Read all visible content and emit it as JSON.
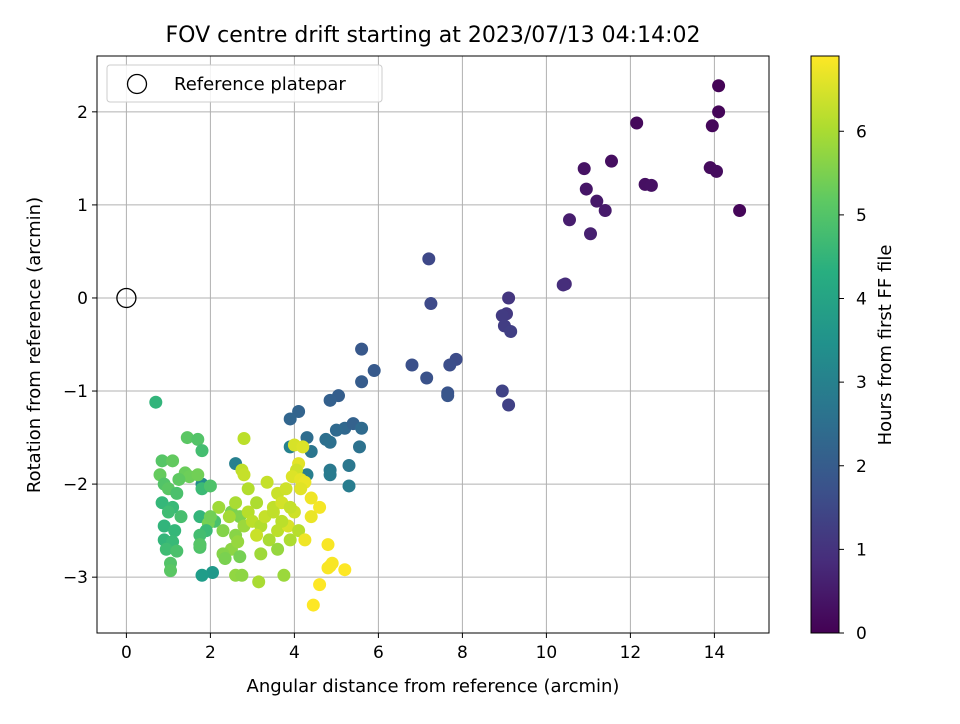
{
  "chart_data": {
    "type": "scatter",
    "title": "FOV centre drift starting at 2023/07/13 04:14:02",
    "xlabel": "Angular distance from reference (arcmin)",
    "ylabel": "Rotation from reference (arcmin)",
    "xlim": [
      -0.7,
      15.3
    ],
    "ylim": [
      -3.6,
      2.6
    ],
    "xticks": [
      0,
      2,
      4,
      6,
      8,
      10,
      12,
      14
    ],
    "yticks": [
      -3,
      -2,
      -1,
      0,
      1,
      2
    ],
    "xtick_labels": [
      "0",
      "2",
      "4",
      "6",
      "8",
      "10",
      "12",
      "14"
    ],
    "ytick_labels": [
      "−3",
      "−2",
      "−1",
      "0",
      "1",
      "2"
    ],
    "grid": true,
    "legend": {
      "placement": "top-left",
      "entries": [
        "Reference platepar"
      ]
    },
    "reference_point": {
      "x": 0,
      "y": 0,
      "label": "Reference platepar"
    },
    "colorbar": {
      "label": "Hours from first FF file",
      "range": [
        0,
        6.9
      ],
      "ticks": [
        0,
        1,
        2,
        3,
        4,
        5,
        6
      ],
      "tick_labels": [
        "0",
        "1",
        "2",
        "3",
        "4",
        "5",
        "6"
      ],
      "colormap": "viridis"
    },
    "points": [
      [
        14.1,
        2.28,
        0.05
      ],
      [
        14.1,
        2.0,
        0.08
      ],
      [
        12.15,
        1.88,
        0.15
      ],
      [
        13.95,
        1.85,
        0.12
      ],
      [
        11.55,
        1.47,
        0.25
      ],
      [
        13.9,
        1.4,
        0.2
      ],
      [
        14.05,
        1.36,
        0.22
      ],
      [
        10.9,
        1.39,
        0.35
      ],
      [
        12.35,
        1.22,
        0.3
      ],
      [
        12.5,
        1.21,
        0.32
      ],
      [
        10.95,
        1.17,
        0.4
      ],
      [
        11.2,
        1.04,
        0.45
      ],
      [
        11.4,
        0.94,
        0.5
      ],
      [
        14.6,
        0.94,
        0.1
      ],
      [
        10.55,
        0.84,
        0.55
      ],
      [
        11.05,
        0.69,
        0.6
      ],
      [
        10.45,
        0.15,
        0.85
      ],
      [
        10.4,
        0.14,
        0.9
      ],
      [
        9.1,
        0.0,
        1.1
      ],
      [
        9.05,
        -0.17,
        1.15
      ],
      [
        8.95,
        -0.19,
        1.2
      ],
      [
        9.0,
        -0.3,
        1.25
      ],
      [
        9.15,
        -0.36,
        1.3
      ],
      [
        8.95,
        -1.0,
        1.4
      ],
      [
        9.1,
        -1.15,
        1.35
      ],
      [
        7.2,
        0.42,
        1.5
      ],
      [
        7.25,
        -0.06,
        1.55
      ],
      [
        7.85,
        -0.66,
        1.6
      ],
      [
        7.7,
        -0.72,
        1.65
      ],
      [
        6.8,
        -0.72,
        1.7
      ],
      [
        7.15,
        -0.86,
        1.75
      ],
      [
        7.65,
        -1.02,
        1.8
      ],
      [
        7.65,
        -1.05,
        1.85
      ],
      [
        5.6,
        -0.55,
        1.9
      ],
      [
        5.9,
        -0.78,
        1.95
      ],
      [
        5.6,
        -0.9,
        2.0
      ],
      [
        5.05,
        -1.05,
        2.05
      ],
      [
        4.85,
        -1.1,
        2.1
      ],
      [
        4.1,
        -1.22,
        2.2
      ],
      [
        3.9,
        -1.3,
        2.25
      ],
      [
        5.2,
        -1.4,
        2.3
      ],
      [
        5.0,
        -1.42,
        2.35
      ],
      [
        5.4,
        -1.35,
        2.15
      ],
      [
        5.6,
        -1.4,
        2.4
      ],
      [
        4.75,
        -1.52,
        2.5
      ],
      [
        4.3,
        -1.5,
        2.45
      ],
      [
        4.85,
        -1.55,
        2.55
      ],
      [
        5.55,
        -1.6,
        2.6
      ],
      [
        4.4,
        -1.65,
        2.7
      ],
      [
        5.3,
        -1.8,
        2.75
      ],
      [
        4.85,
        -1.85,
        2.8
      ],
      [
        4.85,
        -1.9,
        2.85
      ],
      [
        5.3,
        -2.02,
        2.9
      ],
      [
        4.3,
        -1.9,
        2.95
      ],
      [
        3.9,
        -1.6,
        3.05
      ],
      [
        2.6,
        -1.78,
        3.0
      ],
      [
        1.8,
        -2.0,
        3.35
      ],
      [
        1.75,
        -2.65,
        3.6
      ],
      [
        2.05,
        -2.95,
        3.7
      ],
      [
        1.8,
        -2.98,
        3.8
      ],
      [
        0.7,
        -1.12,
        4.5
      ],
      [
        1.45,
        -1.5,
        5.1
      ],
      [
        1.7,
        -1.52,
        5.0
      ],
      [
        1.8,
        -1.64,
        4.8
      ],
      [
        0.85,
        -1.75,
        5.05
      ],
      [
        1.1,
        -1.75,
        5.2
      ],
      [
        0.8,
        -1.9,
        5.25
      ],
      [
        1.4,
        -1.88,
        5.3
      ],
      [
        1.5,
        -1.92,
        5.35
      ],
      [
        1.25,
        -1.95,
        5.15
      ],
      [
        1.7,
        -1.9,
        5.4
      ],
      [
        0.9,
        -2.0,
        5.0
      ],
      [
        1.0,
        -2.05,
        5.1
      ],
      [
        1.2,
        -2.1,
        4.9
      ],
      [
        1.8,
        -2.05,
        4.7
      ],
      [
        2.0,
        -2.02,
        4.95
      ],
      [
        0.85,
        -2.2,
        4.6
      ],
      [
        1.1,
        -2.25,
        4.65
      ],
      [
        1.0,
        -2.3,
        4.75
      ],
      [
        1.3,
        -2.35,
        4.85
      ],
      [
        1.75,
        -2.35,
        4.55
      ],
      [
        2.1,
        -2.4,
        4.9
      ],
      [
        1.95,
        -2.42,
        5.45
      ],
      [
        0.9,
        -2.45,
        4.5
      ],
      [
        1.15,
        -2.5,
        4.6
      ],
      [
        1.9,
        -2.5,
        4.7
      ],
      [
        1.75,
        -2.55,
        4.8
      ],
      [
        0.9,
        -2.6,
        4.55
      ],
      [
        1.1,
        -2.62,
        4.65
      ],
      [
        0.95,
        -2.7,
        4.75
      ],
      [
        1.2,
        -2.72,
        4.9
      ],
      [
        1.05,
        -2.85,
        5.0
      ],
      [
        1.05,
        -2.93,
        5.1
      ],
      [
        1.75,
        -2.68,
        4.95
      ],
      [
        1.75,
        -2.65,
        5.05
      ],
      [
        2.5,
        -2.3,
        5.5
      ],
      [
        2.7,
        -2.35,
        5.55
      ],
      [
        2.3,
        -2.5,
        5.6
      ],
      [
        2.6,
        -2.55,
        5.65
      ],
      [
        2.5,
        -2.7,
        5.7
      ],
      [
        2.3,
        -2.75,
        5.6
      ],
      [
        2.35,
        -2.8,
        5.5
      ],
      [
        2.7,
        -2.78,
        5.45
      ],
      [
        2.6,
        -2.98,
        5.75
      ],
      [
        2.75,
        -2.98,
        5.7
      ],
      [
        2.65,
        -2.62,
        5.8
      ],
      [
        2.8,
        -2.45,
        5.85
      ],
      [
        2.2,
        -2.25,
        5.9
      ],
      [
        2.45,
        -2.35,
        5.95
      ],
      [
        2.0,
        -2.35,
        5.4
      ],
      [
        2.8,
        -1.51,
        6.2
      ],
      [
        2.75,
        -1.85,
        6.25
      ],
      [
        2.8,
        -1.9,
        6.3
      ],
      [
        2.9,
        -2.05,
        6.1
      ],
      [
        2.6,
        -2.2,
        6.0
      ],
      [
        3.1,
        -2.2,
        6.05
      ],
      [
        2.9,
        -2.3,
        6.15
      ],
      [
        3.0,
        -2.4,
        6.2
      ],
      [
        3.2,
        -2.45,
        6.1
      ],
      [
        3.3,
        -2.35,
        6.3
      ],
      [
        3.1,
        -2.55,
        6.35
      ],
      [
        3.4,
        -2.6,
        6.0
      ],
      [
        3.6,
        -2.5,
        6.2
      ],
      [
        3.5,
        -2.25,
        6.25
      ],
      [
        3.35,
        -1.98,
        6.3
      ],
      [
        3.6,
        -2.1,
        6.35
      ],
      [
        3.8,
        -2.05,
        6.4
      ],
      [
        3.7,
        -2.2,
        6.45
      ],
      [
        4.0,
        -2.3,
        6.4
      ],
      [
        3.85,
        -2.45,
        6.5
      ],
      [
        3.6,
        -2.7,
        5.8
      ],
      [
        3.2,
        -2.75,
        5.9
      ],
      [
        3.75,
        -2.98,
        5.85
      ],
      [
        3.15,
        -3.05,
        6.0
      ],
      [
        3.9,
        -2.6,
        6.05
      ],
      [
        4.1,
        -2.5,
        6.15
      ],
      [
        3.7,
        -2.4,
        6.2
      ],
      [
        3.5,
        -2.3,
        6.25
      ],
      [
        4.0,
        -1.58,
        6.5
      ],
      [
        4.2,
        -1.6,
        6.55
      ],
      [
        4.1,
        -1.78,
        6.6
      ],
      [
        4.05,
        -1.85,
        6.4
      ],
      [
        3.95,
        -1.92,
        6.55
      ],
      [
        4.15,
        -1.95,
        6.65
      ],
      [
        4.25,
        -1.98,
        6.7
      ],
      [
        4.15,
        -2.05,
        6.6
      ],
      [
        4.4,
        -2.15,
        6.75
      ],
      [
        4.6,
        -2.25,
        6.8
      ],
      [
        4.4,
        -2.35,
        6.7
      ],
      [
        3.9,
        -2.25,
        6.3
      ],
      [
        4.8,
        -2.65,
        6.85
      ],
      [
        4.25,
        -2.6,
        6.75
      ],
      [
        4.85,
        -2.88,
        6.8
      ],
      [
        4.9,
        -2.85,
        6.85
      ],
      [
        5.2,
        -2.92,
        6.9
      ],
      [
        4.8,
        -2.9,
        6.85
      ],
      [
        4.6,
        -3.08,
        6.9
      ],
      [
        4.45,
        -3.3,
        6.9
      ]
    ]
  }
}
